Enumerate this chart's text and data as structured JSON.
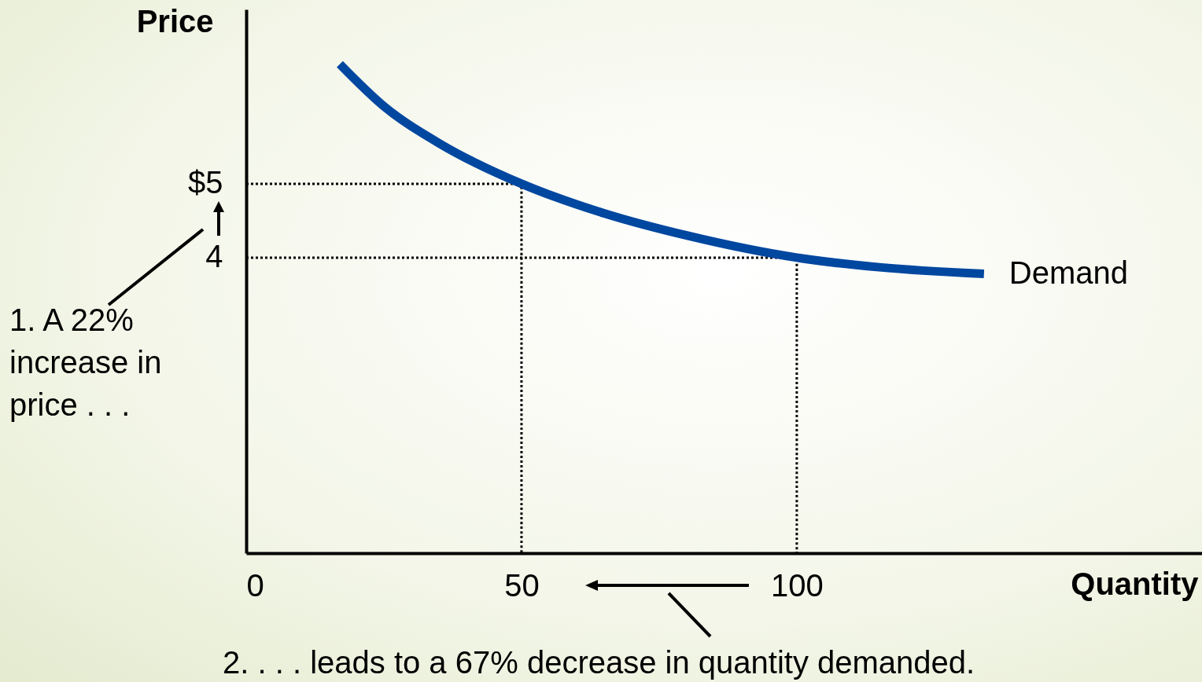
{
  "chart_data": {
    "type": "line",
    "xlabel": "Quantity",
    "ylabel": "Price",
    "xlim": [
      0,
      173.6
    ],
    "ylim": [
      0,
      7.36
    ],
    "xticks": [
      0,
      50,
      100
    ],
    "yticks": [
      {
        "value": 5,
        "label": "$5"
      },
      4
    ],
    "grid": false,
    "legend": false,
    "annotations": [
      "1. A 22% increase in price . . .",
      "2. . . . leads to a 67% decrease in quantity demanded."
    ],
    "series": [
      {
        "name": "Demand",
        "color": "#0047a0",
        "x": [
          17,
          25,
          35,
          50,
          65,
          80,
          100,
          115,
          134
        ],
        "values": [
          6.62,
          6.05,
          5.55,
          5,
          4.6,
          4.3,
          4,
          3.87,
          3.78
        ]
      },
      {
        "color": "#000000",
        "line_style": "dotted",
        "x": [
          0,
          50,
          50
        ],
        "values": [
          5,
          5,
          0
        ]
      },
      {
        "color": "#000000",
        "line_style": "dotted",
        "x": [
          0,
          100,
          100
        ],
        "values": [
          4,
          4,
          0
        ]
      }
    ]
  }
}
